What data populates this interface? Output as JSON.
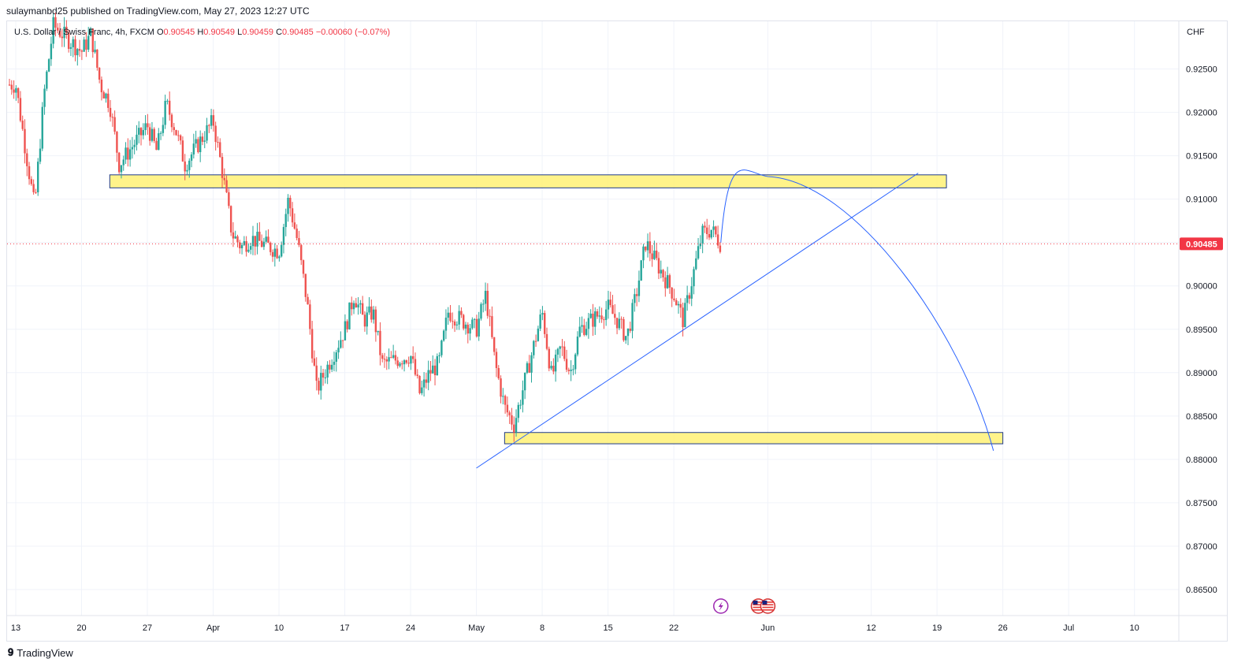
{
  "publisher_line": "sulaymanbd25 published on TradingView.com, May 27, 2023 12:27 UTC",
  "legend": {
    "symbol": "U.S. Dollar / Swiss Franc, 4h, FXCM",
    "open_label": "O",
    "open": "0.90545",
    "high_label": "H",
    "high": "0.90549",
    "low_label": "L",
    "low": "0.90459",
    "close_label": "C",
    "close": "0.90485",
    "change": "−0.00060 (−0.07%)"
  },
  "currency": "CHF",
  "current_price_label": "0.90485",
  "footer": {
    "logo_text": "TradingView"
  },
  "colors": {
    "up": "#26a69a",
    "down": "#ef5350",
    "zone_fill": "#fff176",
    "zone_stroke": "#1e3a8a",
    "trendline": "#2962ff",
    "price_tag": "#f23645"
  },
  "events": [
    {
      "icon": "lightning-icon",
      "date": "May 27"
    },
    {
      "icon": "us-flag-icon",
      "date": "Jun 1"
    },
    {
      "icon": "us-flag-icon",
      "date": "Jun 2"
    }
  ],
  "chart_data": {
    "type": "candlestick",
    "title": "U.S. Dollar / Swiss Franc, 4h, FXCM",
    "timeframe": "4h",
    "y_ticks": [
      "0.92500",
      "0.92000",
      "0.91500",
      "0.91000",
      "0.90500",
      "0.90000",
      "0.89500",
      "0.89000",
      "0.88500",
      "0.88000",
      "0.87500",
      "0.87000",
      "0.86500"
    ],
    "x_ticks": [
      "13",
      "20",
      "27",
      "Apr",
      "10",
      "17",
      "24",
      "May",
      "8",
      "15",
      "22",
      "Jun",
      "12",
      "19",
      "26",
      "Jul",
      "10"
    ],
    "ylim": [
      0.862,
      0.9305
    ],
    "current_price": 0.90485,
    "price_path": [
      [
        "2023-03-13",
        0.9232
      ],
      [
        "2023-03-14",
        0.916
      ],
      [
        "2023-03-15",
        0.909
      ],
      [
        "2023-03-16",
        0.922
      ],
      [
        "2023-03-17",
        0.93
      ],
      [
        "2023-03-20",
        0.927
      ],
      [
        "2023-03-21",
        0.929
      ],
      [
        "2023-03-22",
        0.9232
      ],
      [
        "2023-03-23",
        0.921
      ],
      [
        "2023-03-24",
        0.914
      ],
      [
        "2023-03-27",
        0.9185
      ],
      [
        "2023-03-28",
        0.9155
      ],
      [
        "2023-03-29",
        0.921
      ],
      [
        "2023-03-30",
        0.918
      ],
      [
        "2023-03-31",
        0.914
      ],
      [
        "2023-04-03",
        0.919
      ],
      [
        "2023-04-04",
        0.913
      ],
      [
        "2023-04-05",
        0.906
      ],
      [
        "2023-04-06",
        0.9045
      ],
      [
        "2023-04-07",
        0.9055
      ],
      [
        "2023-04-10",
        0.904
      ],
      [
        "2023-04-11",
        0.91
      ],
      [
        "2023-04-12",
        0.905
      ],
      [
        "2023-04-13",
        0.898
      ],
      [
        "2023-04-14",
        0.888
      ],
      [
        "2023-04-17",
        0.895
      ],
      [
        "2023-04-18",
        0.899
      ],
      [
        "2023-04-19",
        0.896
      ],
      [
        "2023-04-20",
        0.897
      ],
      [
        "2023-04-21",
        0.891
      ],
      [
        "2023-04-24",
        0.892
      ],
      [
        "2023-04-25",
        0.8875
      ],
      [
        "2023-04-26",
        0.89
      ],
      [
        "2023-04-27",
        0.891
      ],
      [
        "2023-04-28",
        0.897
      ],
      [
        "2023-05-01",
        0.895
      ],
      [
        "2023-05-02",
        0.899
      ],
      [
        "2023-05-03",
        0.891
      ],
      [
        "2023-05-04",
        0.886
      ],
      [
        "2023-05-05",
        0.884
      ],
      [
        "2023-05-08",
        0.897
      ],
      [
        "2023-05-09",
        0.8895
      ],
      [
        "2023-05-10",
        0.893
      ],
      [
        "2023-05-11",
        0.89
      ],
      [
        "2023-05-12",
        0.895
      ],
      [
        "2023-05-15",
        0.8975
      ],
      [
        "2023-05-16",
        0.896
      ],
      [
        "2023-05-17",
        0.894
      ],
      [
        "2023-05-18",
        0.899
      ],
      [
        "2023-05-19",
        0.905
      ],
      [
        "2023-05-22",
        0.899
      ],
      [
        "2023-05-23",
        0.896
      ],
      [
        "2023-05-24",
        0.901
      ],
      [
        "2023-05-25",
        0.906
      ],
      [
        "2023-05-26",
        0.9065
      ],
      [
        "2023-05-27",
        0.90485
      ]
    ],
    "annotations": {
      "resistance_zone": {
        "from": "2023-03-23",
        "to": "2023-06-20",
        "low": 0.9113,
        "high": 0.9128
      },
      "support_zone": {
        "from": "2023-05-04",
        "to": "2023-06-26",
        "low": 0.8818,
        "high": 0.8831
      },
      "trendline": {
        "start": [
          "2023-05-01",
          0.879
        ],
        "end": [
          "2023-06-17",
          0.913
        ]
      },
      "projection_path": [
        [
          "2023-05-27",
          0.905
        ],
        [
          "2023-06-01",
          0.9126
        ],
        [
          "2023-06-25",
          0.881
        ]
      ]
    }
  }
}
